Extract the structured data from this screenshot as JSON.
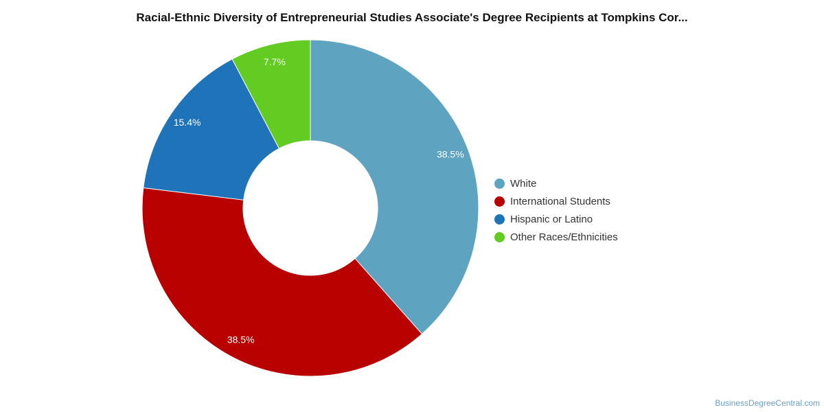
{
  "chart_data": {
    "type": "pie",
    "title": "Racial-Ethnic Diversity of Entrepreneurial Studies Associate's Degree Recipients at Tompkins Cor...",
    "donut": true,
    "legend_position": "right",
    "slices": [
      {
        "name": "White",
        "value": 38.5,
        "label": "38.5%",
        "color": "#5ea3bf"
      },
      {
        "name": "International Students",
        "value": 38.5,
        "label": "38.5%",
        "color": "#b80000"
      },
      {
        "name": "Hispanic or Latino",
        "value": 15.4,
        "label": "15.4%",
        "color": "#1f73b8"
      },
      {
        "name": "Other Races/Ethnicities",
        "value": 7.7,
        "label": "7.7%",
        "color": "#62cc22"
      }
    ]
  },
  "watermark": "BusinessDegreeCentral.com"
}
